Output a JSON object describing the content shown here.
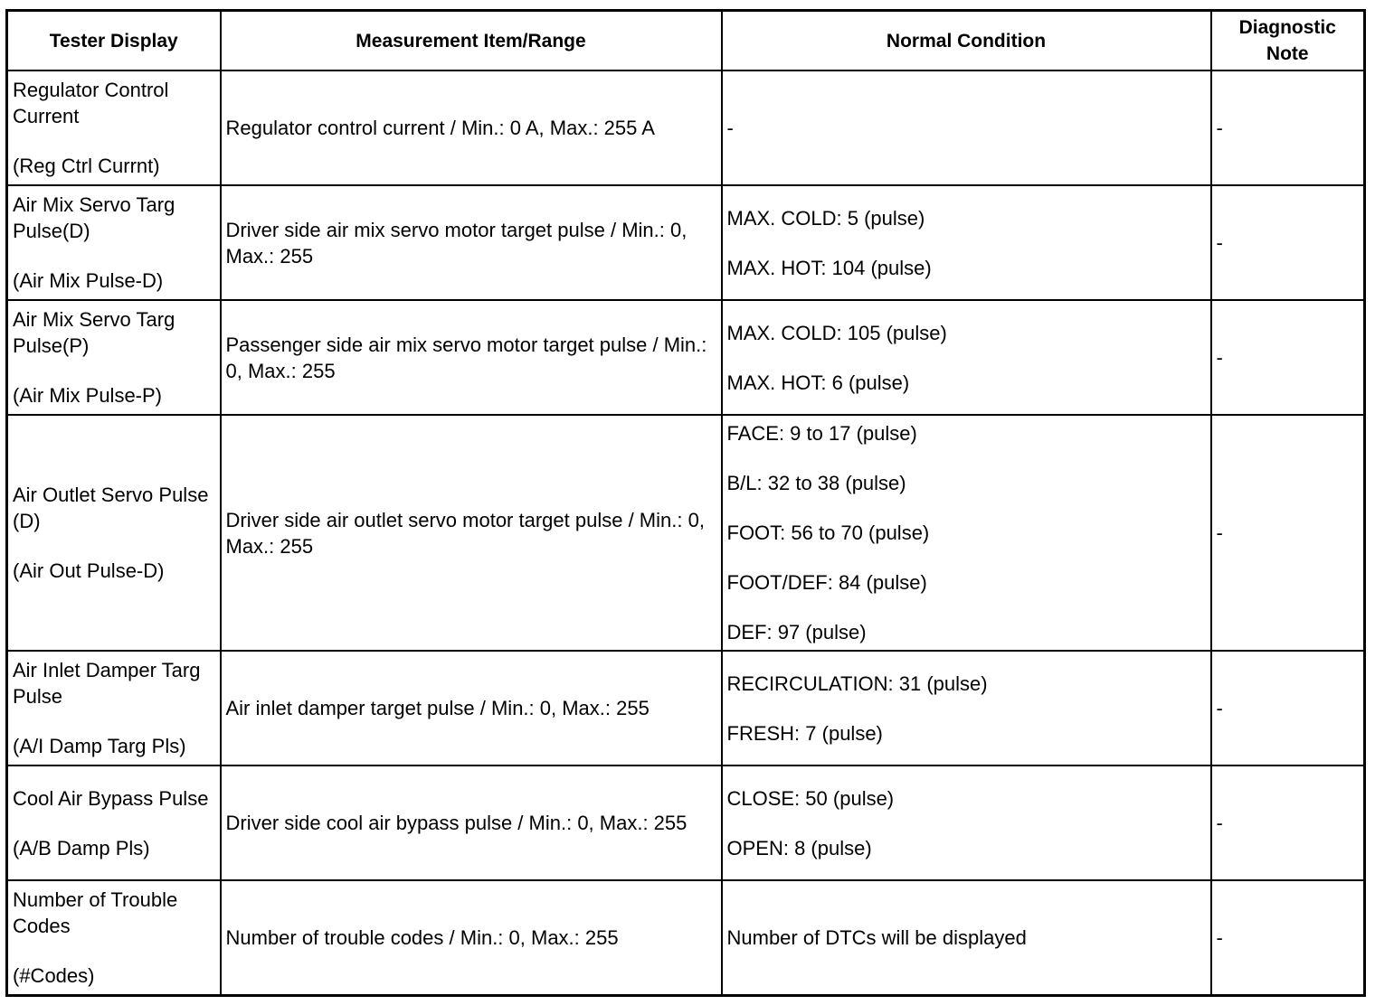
{
  "headers": [
    "Tester Display",
    "Measurement Item/Range",
    "Normal Condition",
    "Diagnostic Note"
  ],
  "rows": [
    {
      "name": "Regulator Control Current",
      "abbr": "(Reg Ctrl Currnt)",
      "measurement": "Regulator control current / Min.: 0 A, Max.: 255 A",
      "conditions": [
        "-"
      ],
      "note": "-"
    },
    {
      "name": "Air Mix Servo Targ Pulse(D)",
      "abbr": "(Air Mix Pulse-D)",
      "measurement": "Driver side air mix servo motor target pulse / Min.: 0, Max.: 255",
      "conditions": [
        "MAX. COLD: 5 (pulse)",
        "MAX. HOT: 104 (pulse)"
      ],
      "note": "-"
    },
    {
      "name": "Air Mix Servo Targ Pulse(P)",
      "abbr": "(Air Mix Pulse-P)",
      "measurement": "Passenger side air mix servo motor target pulse / Min.: 0, Max.: 255",
      "conditions": [
        "MAX. COLD: 105 (pulse)",
        "MAX. HOT: 6 (pulse)"
      ],
      "note": "-"
    },
    {
      "name": "Air Outlet Servo Pulse (D)",
      "abbr": "(Air Out Pulse-D)",
      "measurement": "Driver side air outlet servo motor target pulse / Min.: 0, Max.: 255",
      "conditions": [
        "FACE: 9 to 17 (pulse)",
        "B/L: 32 to 38 (pulse)",
        "FOOT: 56 to 70 (pulse)",
        "FOOT/DEF: 84 (pulse)",
        "DEF: 97 (pulse)"
      ],
      "note": "-"
    },
    {
      "name": "Air Inlet Damper Targ Pulse",
      "abbr": "(A/I Damp Targ Pls)",
      "measurement": "Air inlet damper target pulse / Min.: 0, Max.: 255",
      "conditions": [
        "RECIRCULATION: 31 (pulse)",
        "FRESH: 7 (pulse)"
      ],
      "note": "-"
    },
    {
      "name": "Cool Air Bypass Pulse",
      "abbr": "(A/B Damp Pls)",
      "measurement": "Driver side cool air bypass pulse / Min.: 0, Max.: 255",
      "conditions": [
        "CLOSE: 50 (pulse)",
        "OPEN: 8 (pulse)"
      ],
      "note": "-"
    },
    {
      "name": "Number of Trouble Codes",
      "abbr": "(#Codes)",
      "measurement": "Number of trouble codes / Min.: 0, Max.: 255",
      "conditions": [
        "Number of DTCs will be displayed"
      ],
      "note": "-"
    }
  ]
}
